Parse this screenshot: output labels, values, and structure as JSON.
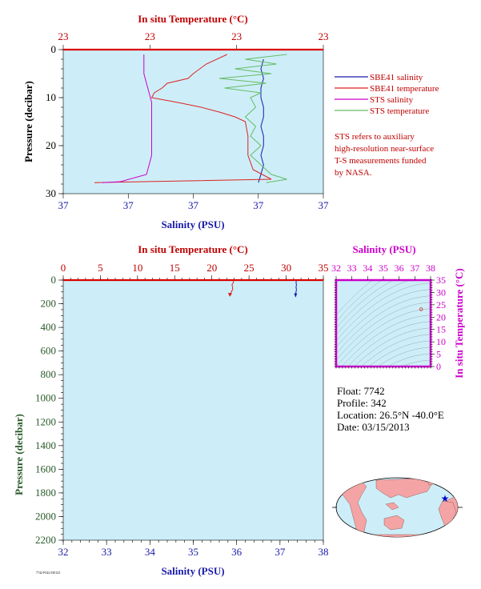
{
  "chart_data": [
    {
      "type": "line",
      "top_axis": {
        "title": "In situ Temperature (°C)",
        "tick_labels": [
          "23",
          "23",
          "23",
          "23"
        ]
      },
      "bottom_axis": {
        "title": "Salinity (PSU)",
        "tick_labels": [
          "37",
          "37",
          "37",
          "37",
          "37"
        ]
      },
      "ylabel": "Pressure (decibar)",
      "ylim": [
        0,
        30
      ],
      "y_ticks": [
        "0",
        "10",
        "20",
        "30"
      ],
      "series": [
        {
          "name": "SBE41 salinity",
          "color": "#1a1aaa",
          "points": [
            [
              0.77,
              2
            ],
            [
              0.76,
              4
            ],
            [
              0.77,
              6
            ],
            [
              0.76,
              8
            ],
            [
              0.76,
              10
            ],
            [
              0.77,
              12
            ],
            [
              0.77,
              14
            ],
            [
              0.76,
              16
            ],
            [
              0.77,
              18
            ],
            [
              0.77,
              20
            ],
            [
              0.76,
              22
            ],
            [
              0.77,
              24
            ],
            [
              0.76,
              26
            ],
            [
              0.75,
              27.7
            ]
          ]
        },
        {
          "name": "SBE41 temperature",
          "color": "#dd2222",
          "points": [
            [
              0.63,
              1
            ],
            [
              0.55,
              3
            ],
            [
              0.5,
              5
            ],
            [
              0.48,
              6
            ],
            [
              0.4,
              7
            ],
            [
              0.38,
              8
            ],
            [
              0.35,
              9
            ],
            [
              0.34,
              10
            ],
            [
              0.44,
              11
            ],
            [
              0.53,
              12
            ],
            [
              0.6,
              13
            ],
            [
              0.66,
              14
            ],
            [
              0.7,
              15
            ],
            [
              0.71,
              18
            ],
            [
              0.71,
              22
            ],
            [
              0.73,
              25
            ],
            [
              0.8,
              27
            ],
            [
              0.12,
              27.7
            ]
          ]
        },
        {
          "name": "STS salinity",
          "color": "#cc00cc",
          "points": [
            [
              0.31,
              1
            ],
            [
              0.31,
              3
            ],
            [
              0.31,
              5
            ],
            [
              0.32,
              7
            ],
            [
              0.33,
              9
            ],
            [
              0.34,
              11
            ],
            [
              0.34,
              14
            ],
            [
              0.34,
              18
            ],
            [
              0.34,
              22
            ],
            [
              0.33,
              24
            ],
            [
              0.32,
              26
            ],
            [
              0.22,
              27.5
            ],
            [
              0.15,
              27.7
            ]
          ]
        },
        {
          "name": "STS temperature",
          "color": "#66bb66",
          "points": [
            [
              0.86,
              1
            ],
            [
              0.7,
              2
            ],
            [
              0.82,
              3
            ],
            [
              0.66,
              4
            ],
            [
              0.8,
              5
            ],
            [
              0.6,
              6
            ],
            [
              0.78,
              7
            ],
            [
              0.62,
              8
            ],
            [
              0.76,
              9
            ],
            [
              0.72,
              10
            ],
            [
              0.74,
              12
            ],
            [
              0.7,
              14
            ],
            [
              0.74,
              16
            ],
            [
              0.72,
              18
            ],
            [
              0.76,
              20
            ],
            [
              0.72,
              22
            ],
            [
              0.76,
              24
            ],
            [
              0.8,
              26
            ],
            [
              0.86,
              27
            ],
            [
              0.78,
              27.7
            ]
          ]
        }
      ],
      "legend": "right",
      "annotation": "STS refers to auxiliary high-resolution near-surface T-S measurements funded by NASA."
    },
    {
      "type": "line",
      "top_axis": {
        "title": "In situ Temperature (°C)",
        "range": [
          0,
          35
        ],
        "tick_labels": [
          "0",
          "5",
          "10",
          "15",
          "20",
          "25",
          "30",
          "35"
        ]
      },
      "bottom_axis": {
        "title": "Salinity (PSU)",
        "range": [
          32,
          38
        ],
        "tick_labels": [
          "32",
          "33",
          "34",
          "35",
          "36",
          "37",
          "38"
        ]
      },
      "ylabel": "Pressure (decibar)",
      "ylim": [
        0,
        2200
      ],
      "y_ticks": [
        "0",
        "200",
        "400",
        "600",
        "800",
        "1000",
        "1200",
        "1400",
        "1600",
        "1800",
        "2000",
        "2200"
      ],
      "series": [
        {
          "name": "temperature",
          "color": "#dd2222",
          "points": [
            [
              22.9,
              0
            ],
            [
              22.9,
              20
            ],
            [
              22.7,
              40
            ],
            [
              22.8,
              60
            ],
            [
              22.8,
              80
            ],
            [
              22.6,
              100
            ],
            [
              22.6,
              120
            ],
            [
              22.4,
              135
            ]
          ]
        },
        {
          "name": "salinity",
          "color": "#1a1aaa",
          "points": [
            [
              37.38,
              0
            ],
            [
              37.37,
              20
            ],
            [
              37.38,
              40
            ],
            [
              37.37,
              60
            ],
            [
              37.38,
              80
            ],
            [
              37.37,
              100
            ],
            [
              37.36,
              120
            ],
            [
              37.36,
              140
            ]
          ]
        }
      ]
    },
    {
      "type": "scatter",
      "top_axis": {
        "title": "Salinity (PSU)",
        "range": [
          32,
          38
        ],
        "tick_labels": [
          "32",
          "33",
          "34",
          "35",
          "36",
          "37",
          "38"
        ]
      },
      "right_axis": {
        "title": "In situ Temperature (°C)",
        "range": [
          0,
          35
        ],
        "tick_labels": [
          "0",
          "5",
          "10",
          "15",
          "20",
          "25",
          "30",
          "35"
        ]
      },
      "points": [
        [
          37.4,
          23.2
        ]
      ],
      "background": "potential density contours"
    }
  ],
  "float_info": {
    "float": "Float:  7742",
    "profile": "Profile:  342",
    "location": "Location:  26.5°N  -40.0°E",
    "date": "Date:  03/15/2013"
  },
  "map": {
    "land_color": "#f4a4a4",
    "ocean_color": "#cdeef8",
    "marker_color": "#0000cc"
  },
  "footer": {
    "text": "7742 P342 030123"
  }
}
